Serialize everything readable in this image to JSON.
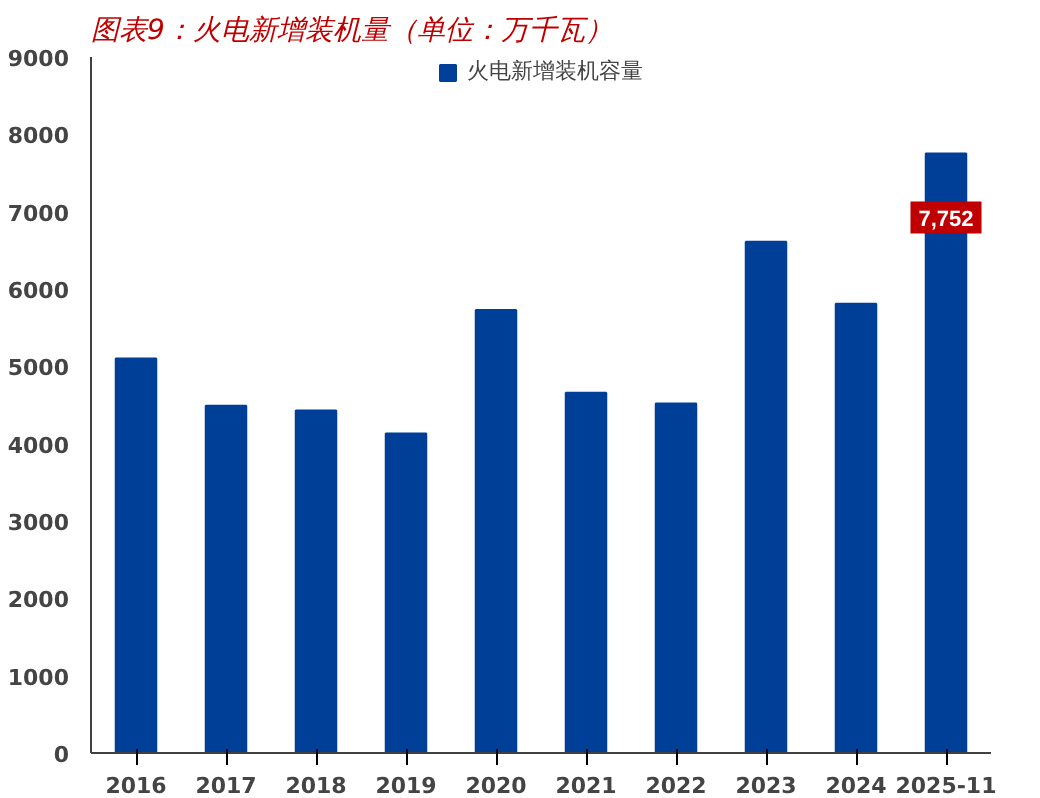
{
  "chart_data": {
    "type": "bar",
    "title": "图表9：火电新增装机量（单位：万千瓦）",
    "categories": [
      "2016",
      "2017",
      "2018",
      "2019",
      "2020",
      "2021",
      "2022",
      "2023",
      "2024",
      "2025-11"
    ],
    "series": [
      {
        "name": "火电新增装机容量",
        "color": "#003f98",
        "values": [
          5100,
          4490,
          4430,
          4130,
          5730,
          4660,
          4520,
          6610,
          5810,
          7752
        ],
        "value_labels": [
          null,
          null,
          null,
          null,
          null,
          null,
          null,
          null,
          null,
          "7,752"
        ]
      }
    ],
    "ylim": [
      0,
      9000
    ],
    "yticks": [
      0,
      1000,
      2000,
      3000,
      4000,
      5000,
      6000,
      7000,
      8000,
      9000
    ],
    "grid": false,
    "legend": "top"
  }
}
